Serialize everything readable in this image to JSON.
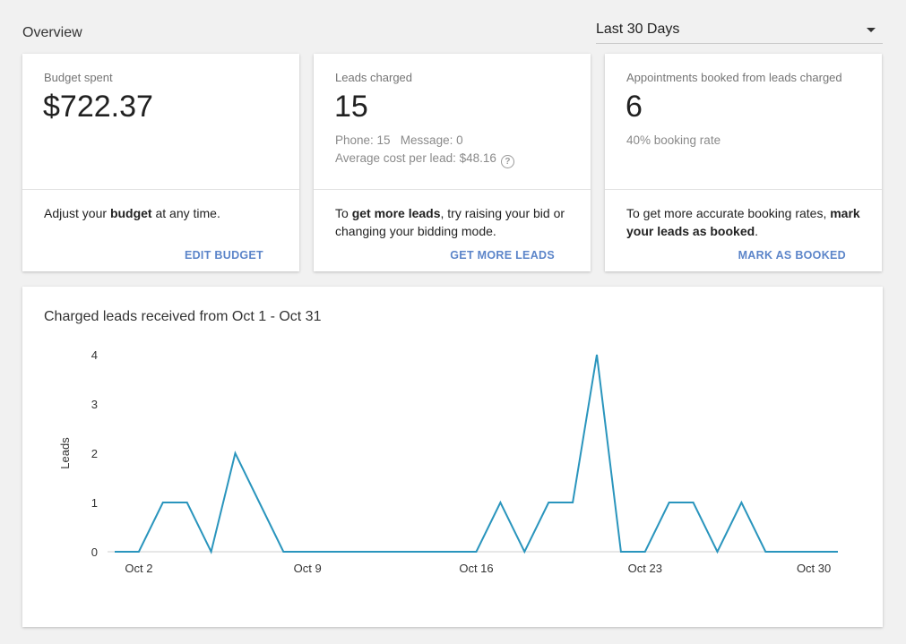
{
  "header": {
    "title": "Overview",
    "date_range": "Last 30 Days"
  },
  "cards": {
    "budget": {
      "label": "Budget spent",
      "value": "$722.37",
      "tip_pre": "Adjust your ",
      "tip_bold": "budget",
      "tip_post": " at any time.",
      "action": "EDIT BUDGET"
    },
    "leads": {
      "label": "Leads charged",
      "value": "15",
      "breakdown": "Phone: 15   Message: 0",
      "avg_cost": "Average cost per lead: $48.16",
      "help_icon": "question-circle-icon",
      "tip_pre": "To ",
      "tip_bold": "get more leads",
      "tip_post": ", try raising your bid or changing your bidding mode.",
      "action": "GET MORE LEADS"
    },
    "appointments": {
      "label": "Appointments booked from leads charged",
      "value": "6",
      "rate": "40% booking rate",
      "tip_pre": "To get more accurate booking rates, ",
      "tip_bold": "mark your leads as booked",
      "tip_post": ".",
      "action": "MARK AS BOOKED"
    }
  },
  "chart_data": {
    "type": "line",
    "title": "Charged leads received from Oct 1 - Oct 31",
    "ylabel": "Leads",
    "xlabel": "",
    "ylim": [
      0,
      4
    ],
    "yticks": [
      0,
      1,
      2,
      3,
      4
    ],
    "x_tick_labels": [
      {
        "day": 2,
        "label": "Oct 2"
      },
      {
        "day": 9,
        "label": "Oct 9"
      },
      {
        "day": 16,
        "label": "Oct 16"
      },
      {
        "day": 23,
        "label": "Oct 23"
      },
      {
        "day": 30,
        "label": "Oct 30"
      }
    ],
    "x": [
      1,
      2,
      3,
      4,
      5,
      6,
      7,
      8,
      9,
      10,
      11,
      12,
      13,
      14,
      15,
      16,
      17,
      18,
      19,
      20,
      21,
      22,
      23,
      24,
      25,
      26,
      27,
      28,
      29,
      30,
      31
    ],
    "series": [
      {
        "color": "#2a95bd",
        "values": [
          0,
          0,
          1,
          1,
          0,
          2,
          1,
          0,
          0,
          0,
          0,
          0,
          0,
          0,
          0,
          0,
          1,
          0,
          1,
          1,
          4,
          0,
          0,
          1,
          1,
          0,
          1,
          0,
          0,
          0,
          0
        ]
      }
    ],
    "grid": false,
    "legend": "none"
  }
}
